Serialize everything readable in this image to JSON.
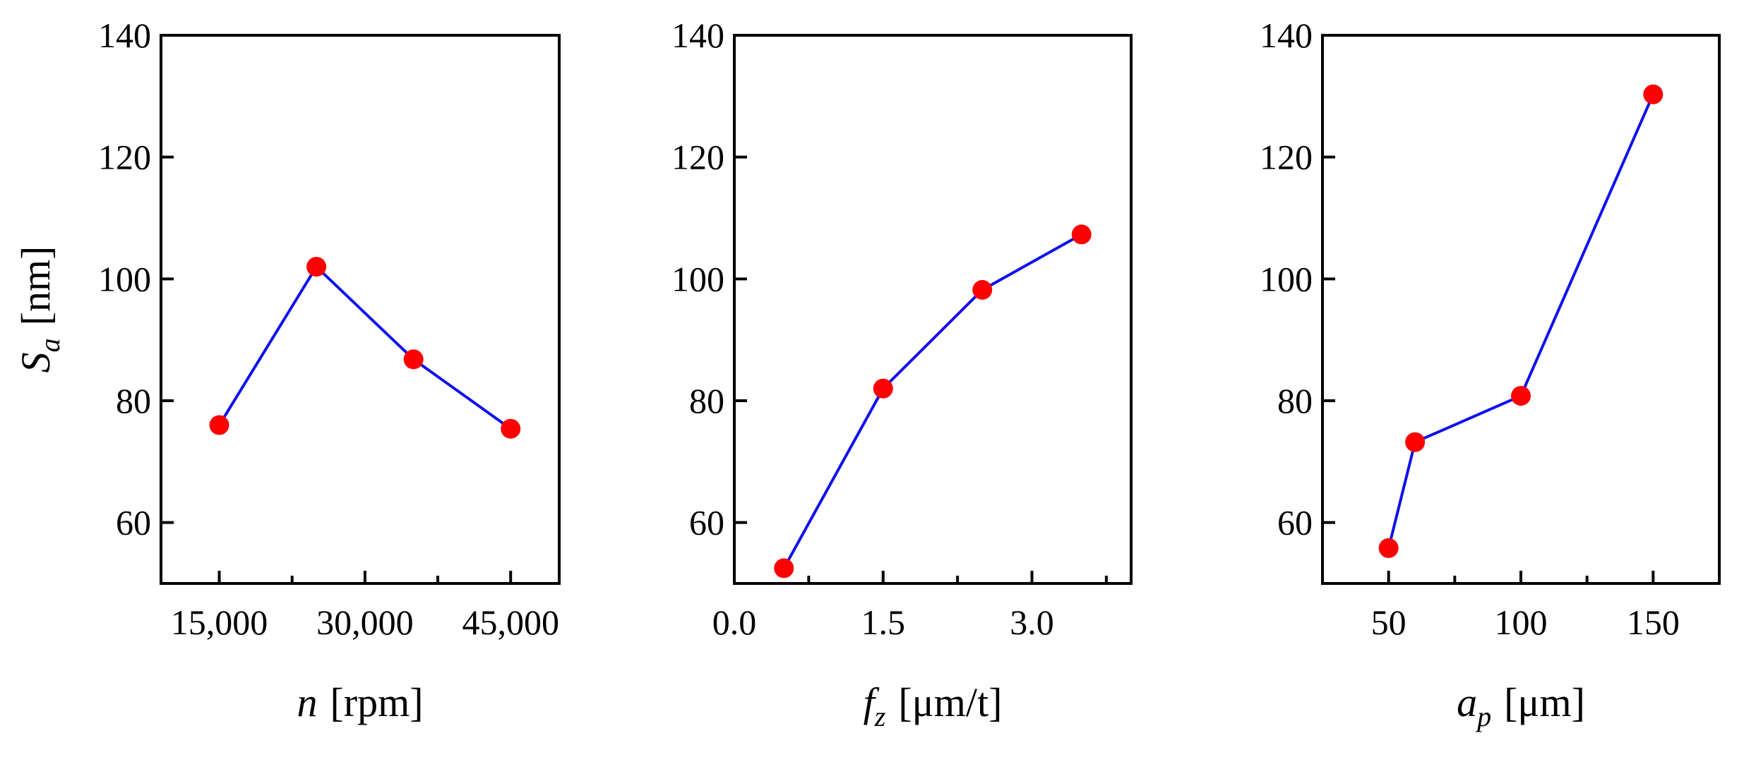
{
  "colors": {
    "line": "#1010ee",
    "marker": "#ff0000",
    "axes": "#000000"
  },
  "chart_data": [
    {
      "type": "line",
      "x": [
        15000,
        25000,
        35000,
        45000
      ],
      "series": [
        {
          "values": [
            76,
            102,
            86.8,
            75.4
          ]
        }
      ],
      "xlim": [
        9000,
        50000
      ],
      "ylim": [
        50,
        140
      ],
      "xticks": [
        15000,
        30000,
        45000
      ],
      "xtick_labels": [
        "15,000",
        "30,000",
        "45,000"
      ],
      "x_minor_ticks": [
        22500,
        37500
      ],
      "yticks": [
        60,
        80,
        100,
        120,
        140
      ],
      "ytick_labels": [
        "60",
        "80",
        "100",
        "120",
        "140"
      ],
      "xlabel": {
        "symbol": "n",
        "subscript": "",
        "unit": "[rpm]"
      },
      "ylabel": {
        "symbol": "S",
        "subscript": "a",
        "unit": "[nm]"
      },
      "grid": false,
      "legend": "none"
    },
    {
      "type": "line",
      "x": [
        0.5,
        1.5,
        2.5,
        3.5
      ],
      "series": [
        {
          "values": [
            52.5,
            82,
            98.2,
            107.3
          ]
        }
      ],
      "xlim": [
        0,
        4
      ],
      "ylim": [
        50,
        140
      ],
      "xticks": [
        0,
        1.5,
        3
      ],
      "xtick_labels": [
        "0.0",
        "1.5",
        "3.0"
      ],
      "x_minor_ticks": [
        0.75,
        2.25,
        3.75
      ],
      "yticks": [
        60,
        80,
        100,
        120,
        140
      ],
      "ytick_labels": [
        "60",
        "80",
        "100",
        "120",
        "140"
      ],
      "xlabel": {
        "symbol": "f",
        "subscript": "z",
        "unit": "[μm/t]"
      },
      "grid": false,
      "legend": "none"
    },
    {
      "type": "line",
      "x": [
        50,
        60,
        100,
        150
      ],
      "series": [
        {
          "values": [
            55.8,
            73.2,
            80.8,
            130.3
          ]
        }
      ],
      "xlim": [
        25,
        175
      ],
      "ylim": [
        50,
        140
      ],
      "xticks": [
        50,
        100,
        150
      ],
      "xtick_labels": [
        "50",
        "100",
        "150"
      ],
      "x_minor_ticks": [
        25,
        75,
        125,
        175
      ],
      "yticks": [
        60,
        80,
        100,
        120,
        140
      ],
      "ytick_labels": [
        "60",
        "80",
        "100",
        "120",
        "140"
      ],
      "xlabel": {
        "symbol": "a",
        "subscript": "p",
        "unit": "[μm]"
      },
      "grid": false,
      "legend": "none"
    }
  ]
}
